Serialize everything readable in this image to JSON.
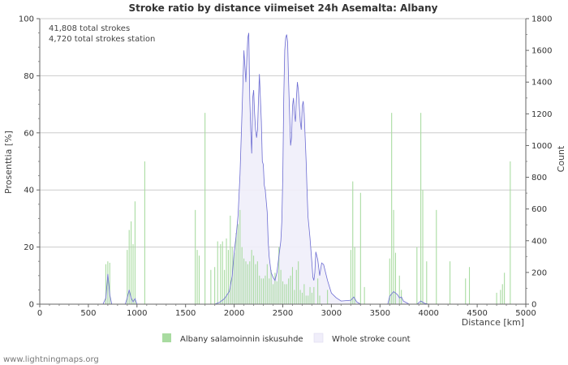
{
  "chart_data": {
    "type": "bar+area",
    "title": "Stroke ratio by distance viimeiset 24h Asemalta: Albany",
    "xlabel": "Distance   [km]",
    "ylabel_left": "Prosenttia   [%]",
    "ylabel_right": "Count",
    "xlim": [
      0,
      5000
    ],
    "ylim_left": [
      0,
      100
    ],
    "ylim_right": [
      0,
      1800
    ],
    "x_ticks": [
      0,
      500,
      1000,
      1500,
      2000,
      2500,
      3000,
      3500,
      4000,
      4500,
      5000
    ],
    "y_left_ticks": [
      0,
      20,
      40,
      60,
      80,
      100
    ],
    "y_right_ticks": [
      0,
      200,
      400,
      600,
      800,
      1000,
      1200,
      1400,
      1600,
      1800
    ],
    "annotations": [
      "41,808 total strokes",
      "4,720 total strokes station"
    ],
    "series": [
      {
        "name": "Albany salamoinnin iskusuhde",
        "kind": "bar",
        "axis": "left",
        "color": "#a8dba0",
        "bar_width_km": 18,
        "points": [
          [
            680,
            14
          ],
          [
            700,
            15
          ],
          [
            720,
            14.5
          ],
          [
            900,
            19
          ],
          [
            920,
            26
          ],
          [
            940,
            29
          ],
          [
            960,
            21
          ],
          [
            980,
            36
          ],
          [
            1080,
            50
          ],
          [
            1600,
            33
          ],
          [
            1620,
            19
          ],
          [
            1640,
            17
          ],
          [
            1700,
            67
          ],
          [
            1760,
            12
          ],
          [
            1800,
            13
          ],
          [
            1830,
            22
          ],
          [
            1860,
            21
          ],
          [
            1880,
            22
          ],
          [
            1900,
            12
          ],
          [
            1920,
            23
          ],
          [
            1940,
            19
          ],
          [
            1960,
            31
          ],
          [
            1980,
            20
          ],
          [
            2000,
            18
          ],
          [
            2020,
            25
          ],
          [
            2040,
            28
          ],
          [
            2060,
            33
          ],
          [
            2080,
            20
          ],
          [
            2100,
            16
          ],
          [
            2120,
            15
          ],
          [
            2140,
            14
          ],
          [
            2160,
            15
          ],
          [
            2180,
            19
          ],
          [
            2200,
            17
          ],
          [
            2220,
            14
          ],
          [
            2240,
            15
          ],
          [
            2260,
            10
          ],
          [
            2280,
            9
          ],
          [
            2300,
            9
          ],
          [
            2320,
            10
          ],
          [
            2340,
            14
          ],
          [
            2360,
            9
          ],
          [
            2380,
            12
          ],
          [
            2400,
            7
          ],
          [
            2420,
            11
          ],
          [
            2440,
            8
          ],
          [
            2460,
            20
          ],
          [
            2480,
            12
          ],
          [
            2500,
            8
          ],
          [
            2520,
            7
          ],
          [
            2540,
            7
          ],
          [
            2560,
            9
          ],
          [
            2580,
            10
          ],
          [
            2600,
            13
          ],
          [
            2620,
            5
          ],
          [
            2640,
            12
          ],
          [
            2660,
            15
          ],
          [
            2680,
            5
          ],
          [
            2700,
            4
          ],
          [
            2720,
            7
          ],
          [
            2740,
            3
          ],
          [
            2760,
            3
          ],
          [
            2780,
            6
          ],
          [
            2800,
            4
          ],
          [
            2820,
            6
          ],
          [
            2860,
            9
          ],
          [
            2880,
            3
          ],
          [
            2960,
            5
          ],
          [
            3200,
            19
          ],
          [
            3220,
            43
          ],
          [
            3240,
            20
          ],
          [
            3300,
            39
          ],
          [
            3340,
            6
          ],
          [
            3600,
            16
          ],
          [
            3620,
            67
          ],
          [
            3640,
            33
          ],
          [
            3660,
            18
          ],
          [
            3700,
            10
          ],
          [
            3720,
            5
          ],
          [
            3880,
            20
          ],
          [
            3920,
            67
          ],
          [
            3940,
            40
          ],
          [
            3980,
            15
          ],
          [
            4080,
            33
          ],
          [
            4220,
            15
          ],
          [
            4380,
            9
          ],
          [
            4420,
            13
          ],
          [
            4700,
            4
          ],
          [
            4740,
            5
          ],
          [
            4760,
            7
          ],
          [
            4780,
            11
          ],
          [
            4840,
            50
          ]
        ]
      },
      {
        "name": "Whole stroke count",
        "kind": "area",
        "axis": "right",
        "fill": "#f0eefa",
        "stroke": "#6c6cd2",
        "points": [
          [
            0,
            0
          ],
          [
            650,
            0
          ],
          [
            680,
            40
          ],
          [
            700,
            190
          ],
          [
            720,
            60
          ],
          [
            740,
            0
          ],
          [
            880,
            0
          ],
          [
            900,
            40
          ],
          [
            920,
            90
          ],
          [
            940,
            40
          ],
          [
            960,
            15
          ],
          [
            980,
            35
          ],
          [
            1000,
            0
          ],
          [
            1800,
            0
          ],
          [
            1850,
            12
          ],
          [
            1900,
            35
          ],
          [
            1950,
            80
          ],
          [
            1980,
            180
          ],
          [
            2000,
            330
          ],
          [
            2020,
            430
          ],
          [
            2040,
            560
          ],
          [
            2060,
            820
          ],
          [
            2080,
            1200
          ],
          [
            2100,
            1600
          ],
          [
            2110,
            1500
          ],
          [
            2120,
            1400
          ],
          [
            2130,
            1550
          ],
          [
            2140,
            1680
          ],
          [
            2150,
            1710
          ],
          [
            2160,
            1300
          ],
          [
            2170,
            1100
          ],
          [
            2180,
            950
          ],
          [
            2190,
            1300
          ],
          [
            2200,
            1350
          ],
          [
            2210,
            1200
          ],
          [
            2220,
            1100
          ],
          [
            2230,
            1050
          ],
          [
            2240,
            1100
          ],
          [
            2250,
            1300
          ],
          [
            2260,
            1450
          ],
          [
            2270,
            1300
          ],
          [
            2280,
            1150
          ],
          [
            2290,
            900
          ],
          [
            2300,
            880
          ],
          [
            2310,
            750
          ],
          [
            2320,
            720
          ],
          [
            2330,
            650
          ],
          [
            2340,
            580
          ],
          [
            2350,
            400
          ],
          [
            2360,
            300
          ],
          [
            2380,
            200
          ],
          [
            2400,
            170
          ],
          [
            2420,
            150
          ],
          [
            2440,
            200
          ],
          [
            2460,
            300
          ],
          [
            2480,
            400
          ],
          [
            2490,
            520
          ],
          [
            2500,
            800
          ],
          [
            2510,
            1300
          ],
          [
            2520,
            1600
          ],
          [
            2530,
            1680
          ],
          [
            2540,
            1700
          ],
          [
            2550,
            1650
          ],
          [
            2560,
            1400
          ],
          [
            2570,
            1200
          ],
          [
            2580,
            1000
          ],
          [
            2590,
            1050
          ],
          [
            2600,
            1250
          ],
          [
            2610,
            1300
          ],
          [
            2620,
            1200
          ],
          [
            2630,
            1150
          ],
          [
            2640,
            1300
          ],
          [
            2650,
            1400
          ],
          [
            2660,
            1350
          ],
          [
            2670,
            1250
          ],
          [
            2680,
            1150
          ],
          [
            2690,
            1100
          ],
          [
            2700,
            1250
          ],
          [
            2710,
            1280
          ],
          [
            2720,
            1200
          ],
          [
            2730,
            1050
          ],
          [
            2740,
            900
          ],
          [
            2750,
            700
          ],
          [
            2760,
            550
          ],
          [
            2780,
            420
          ],
          [
            2800,
            260
          ],
          [
            2810,
            170
          ],
          [
            2820,
            150
          ],
          [
            2830,
            200
          ],
          [
            2840,
            330
          ],
          [
            2860,
            280
          ],
          [
            2880,
            180
          ],
          [
            2900,
            260
          ],
          [
            2920,
            250
          ],
          [
            2940,
            200
          ],
          [
            2960,
            150
          ],
          [
            2980,
            110
          ],
          [
            3000,
            70
          ],
          [
            3050,
            40
          ],
          [
            3100,
            20
          ],
          [
            3200,
            25
          ],
          [
            3230,
            45
          ],
          [
            3260,
            15
          ],
          [
            3300,
            0
          ],
          [
            3580,
            0
          ],
          [
            3600,
            50
          ],
          [
            3640,
            80
          ],
          [
            3680,
            60
          ],
          [
            3700,
            40
          ],
          [
            3720,
            45
          ],
          [
            3740,
            20
          ],
          [
            3800,
            0
          ],
          [
            3880,
            0
          ],
          [
            3920,
            20
          ],
          [
            3960,
            5
          ],
          [
            4000,
            0
          ],
          [
            5000,
            0
          ]
        ]
      }
    ],
    "legend": [
      {
        "label": "Albany salamoinnin iskusuhde",
        "color": "#a8dba0"
      },
      {
        "label": "Whole stroke count",
        "color": "#f0eefa"
      }
    ],
    "credit": "www.lightningmaps.org"
  }
}
